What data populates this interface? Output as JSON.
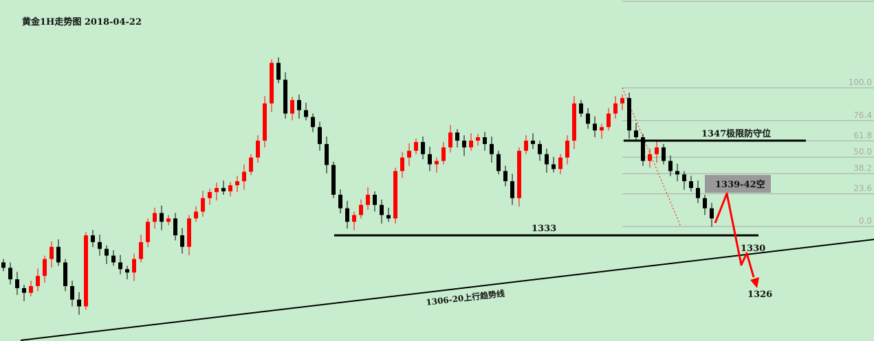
{
  "chart_data": {
    "type": "candlestick",
    "title": "黄金1H走势图 2018-04-22",
    "colors": {
      "background": "#c8edce",
      "up": "#ff0000",
      "down": "#000000",
      "fib_line": "#a8a8a8",
      "forecast": "#ff0000",
      "zone": "#999999"
    },
    "close": [
      1328.2,
      1326.5,
      1325.2,
      1324.5,
      1325.5,
      1327.0,
      1329.5,
      1331.3,
      1329.0,
      1325.5,
      1323.5,
      1322.5,
      1333.0,
      1332.0,
      1331.0,
      1330.0,
      1329.0,
      1328.0,
      1327.5,
      1329.5,
      1332.0,
      1335.0,
      1336.3,
      1335.0,
      1335.5,
      1333.0,
      1331.3,
      1335.5,
      1336.5,
      1338.5,
      1339.4,
      1340.0,
      1339.5,
      1340.4,
      1341.0,
      1342.4,
      1344.5,
      1347.0,
      1352.5,
      1358.5,
      1356.0,
      1351.0,
      1353.0,
      1351.5,
      1350.5,
      1349.0,
      1346.5,
      1343.4,
      1339.0,
      1337.0,
      1335.0,
      1336.0,
      1337.5,
      1339.0,
      1337.5,
      1336.0,
      1335.5,
      1342.5,
      1344.5,
      1345.5,
      1346.8,
      1345.0,
      1343.5,
      1344.0,
      1346.0,
      1348.2,
      1347.0,
      1346.0,
      1347.0,
      1347.5,
      1346.5,
      1345.0,
      1342.5,
      1341.0,
      1338.5,
      1345.5,
      1347.0,
      1346.5,
      1345.0,
      1343.5,
      1342.8,
      1344.5,
      1347.0,
      1352.5,
      1351.0,
      1349.5,
      1348.5,
      1349.0,
      1351.0,
      1352.5,
      1353.3,
      1348.5,
      1347.5,
      1344.0,
      1345.0,
      1346.0,
      1344.0,
      1342.5,
      1342.0,
      1341.0,
      1340.0,
      1338.5,
      1337.0,
      1335.5
    ],
    "fibonacci": {
      "levels": [
        "100.0",
        "76.4",
        "61.8",
        "50.0",
        "38.2",
        "23.6",
        "0.0"
      ],
      "ratios": [
        1.0,
        0.764,
        0.618,
        0.5,
        0.382,
        0.236,
        0.0
      ],
      "high": 1354.8,
      "low": 1334.3
    },
    "annotations": {
      "resistance": {
        "price": 1347,
        "label": "1347极限防守位"
      },
      "support": {
        "price": 1333,
        "label": "1333"
      },
      "trendline": {
        "label": "1306-20上行趋势线"
      },
      "short_zone": {
        "label": "1339-42空",
        "from": 1339,
        "to": 1342
      },
      "target1": {
        "price": 1330,
        "label": "1330"
      },
      "target2": {
        "price": 1326,
        "label": "1326"
      }
    }
  }
}
